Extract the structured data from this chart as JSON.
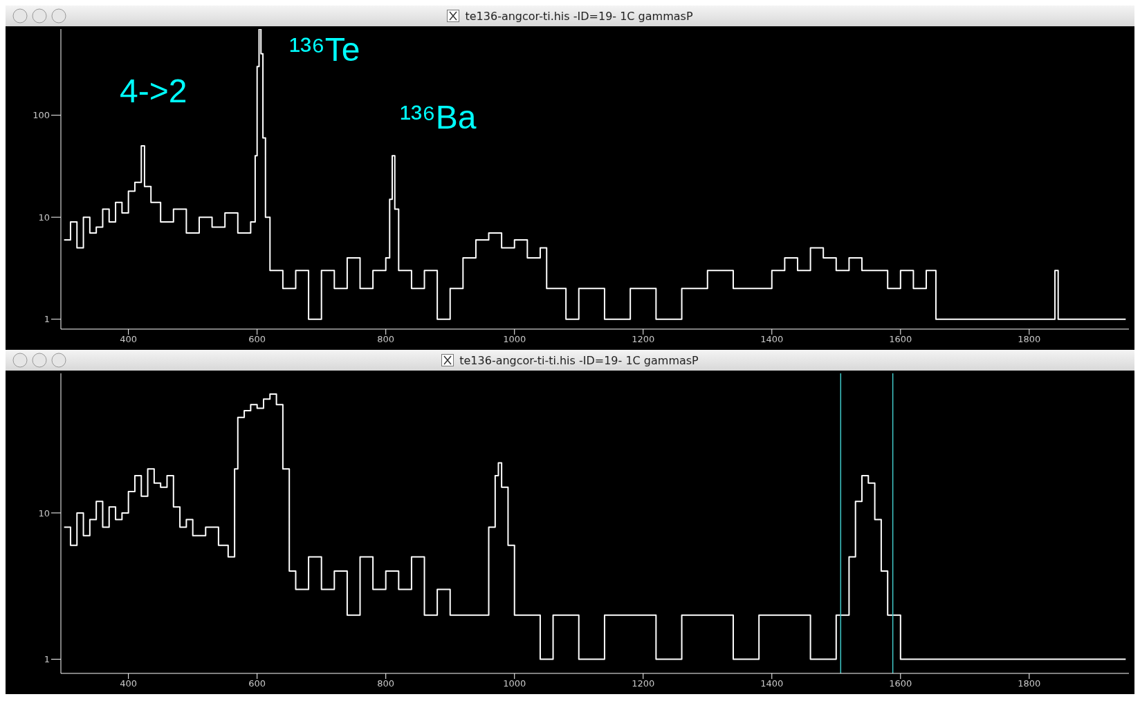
{
  "chart_data": [
    {
      "type": "step",
      "title": "te136-angcor-ti.his -ID=19- 1C gammasP",
      "log": "y",
      "grid": false,
      "legend": false,
      "xlim": [
        295,
        1955
      ],
      "ylim": [
        0.8,
        700
      ],
      "xticks": [
        400,
        600,
        800,
        1000,
        1200,
        1400,
        1600,
        1800
      ],
      "yticks": [
        1,
        10,
        100
      ],
      "series": [
        {
          "color": "#ffffff",
          "x": [
            300,
            310,
            320,
            330,
            340,
            350,
            360,
            370,
            380,
            390,
            400,
            410,
            420,
            425,
            435,
            450,
            470,
            490,
            510,
            530,
            550,
            570,
            590,
            597,
            600,
            603,
            606,
            609,
            613,
            620,
            640,
            660,
            680,
            700,
            720,
            740,
            760,
            780,
            800,
            806,
            810,
            814,
            820,
            840,
            860,
            880,
            900,
            920,
            940,
            960,
            980,
            1000,
            1020,
            1040,
            1050,
            1080,
            1100,
            1140,
            1180,
            1220,
            1260,
            1300,
            1340,
            1380,
            1400,
            1420,
            1440,
            1460,
            1480,
            1500,
            1520,
            1540,
            1560,
            1580,
            1600,
            1620,
            1640,
            1655,
            1700,
            1760,
            1800,
            1840,
            1845,
            1900,
            1950
          ],
          "values": [
            6,
            9,
            5,
            10,
            7,
            8,
            12,
            9,
            14,
            11,
            18,
            22,
            50,
            20,
            14,
            9,
            12,
            7,
            10,
            8,
            11,
            7,
            9,
            40,
            300,
            700,
            400,
            60,
            10,
            3,
            2,
            3,
            1,
            3,
            2,
            4,
            2,
            3,
            4,
            15,
            40,
            12,
            3,
            2,
            3,
            1,
            2,
            4,
            6,
            7,
            5,
            6,
            4,
            5,
            2,
            1,
            2,
            1,
            2,
            1,
            2,
            3,
            2,
            2,
            3,
            4,
            3,
            5,
            4,
            3,
            4,
            3,
            3,
            2,
            3,
            2,
            3,
            1,
            1,
            1,
            1,
            3,
            1,
            1,
            1
          ]
        }
      ],
      "annotations": [
        "4->2",
        "¹³⁶Te",
        "¹³⁶Ba"
      ]
    },
    {
      "type": "step",
      "title": "te136-angcor-ti-ti.his -ID=19- 1C gammasP",
      "log": "y",
      "grid": false,
      "legend": false,
      "xlim": [
        295,
        1955
      ],
      "ylim": [
        0.8,
        90
      ],
      "xticks": [
        400,
        600,
        800,
        1000,
        1200,
        1400,
        1600,
        1800
      ],
      "yticks": [
        1,
        10
      ],
      "series": [
        {
          "color": "#ffffff",
          "x": [
            300,
            310,
            320,
            330,
            340,
            350,
            360,
            370,
            380,
            390,
            400,
            410,
            420,
            430,
            440,
            450,
            460,
            470,
            480,
            490,
            500,
            520,
            540,
            555,
            565,
            570,
            580,
            590,
            600,
            610,
            620,
            630,
            640,
            650,
            660,
            680,
            700,
            720,
            740,
            760,
            780,
            800,
            820,
            840,
            860,
            880,
            900,
            920,
            940,
            960,
            970,
            975,
            980,
            990,
            1000,
            1020,
            1040,
            1060,
            1080,
            1100,
            1140,
            1180,
            1220,
            1260,
            1300,
            1340,
            1380,
            1420,
            1460,
            1500,
            1520,
            1530,
            1540,
            1550,
            1560,
            1570,
            1580,
            1600,
            1650,
            1700,
            1750,
            1800,
            1850,
            1900,
            1950
          ],
          "values": [
            8,
            6,
            10,
            7,
            9,
            12,
            8,
            11,
            9,
            10,
            14,
            18,
            13,
            20,
            16,
            15,
            18,
            11,
            8,
            9,
            7,
            8,
            6,
            5,
            20,
            45,
            50,
            55,
            52,
            60,
            65,
            55,
            20,
            4,
            3,
            5,
            3,
            4,
            2,
            5,
            3,
            4,
            3,
            5,
            2,
            3,
            2,
            2,
            2,
            8,
            18,
            22,
            15,
            6,
            2,
            2,
            1,
            2,
            2,
            1,
            2,
            2,
            1,
            2,
            2,
            1,
            2,
            2,
            1,
            2,
            5,
            12,
            18,
            16,
            9,
            4,
            2,
            1,
            1,
            1,
            1,
            1,
            1,
            1,
            1
          ]
        }
      ],
      "ref_lines": [
        {
          "axis": "x",
          "value": 1507,
          "color": "#40c8c8"
        },
        {
          "axis": "x",
          "value": 1588,
          "color": "#40c8c8"
        }
      ]
    }
  ]
}
